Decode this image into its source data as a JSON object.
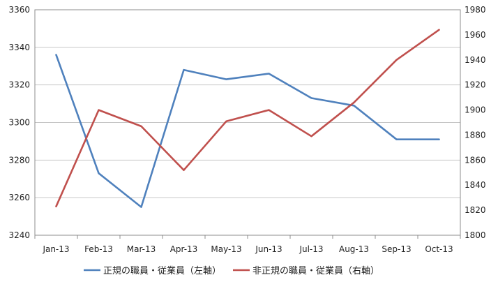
{
  "chart_data": {
    "type": "line",
    "categories": [
      "Jan-13",
      "Feb-13",
      "Mar-13",
      "Apr-13",
      "May-13",
      "Jun-13",
      "Jul-13",
      "Aug-13",
      "Sep-13",
      "Oct-13"
    ],
    "series": [
      {
        "name": "正規の職員・従業員（左軸）",
        "axis": "left",
        "color": "#4f81bd",
        "values": [
          3336,
          3273,
          3255,
          3328,
          3323,
          3326,
          3313,
          3309,
          3291,
          3291
        ]
      },
      {
        "name": "非正規の職員・従業員（右軸）",
        "axis": "right",
        "color": "#c0504d",
        "values": [
          1823,
          1900,
          1887,
          1852,
          1891,
          1900,
          1879,
          1906,
          1940,
          1964
        ]
      }
    ],
    "y_left": {
      "min": 3240,
      "max": 3360,
      "step": 20,
      "ticks": [
        "3240",
        "3260",
        "3280",
        "3300",
        "3320",
        "3340",
        "3360"
      ]
    },
    "y_right": {
      "min": 1800,
      "max": 1980,
      "step": 20,
      "ticks": [
        "1800",
        "1820",
        "1840",
        "1860",
        "1880",
        "1900",
        "1920",
        "1940",
        "1960",
        "1980"
      ]
    },
    "grid": true,
    "legend_position": "bottom"
  }
}
